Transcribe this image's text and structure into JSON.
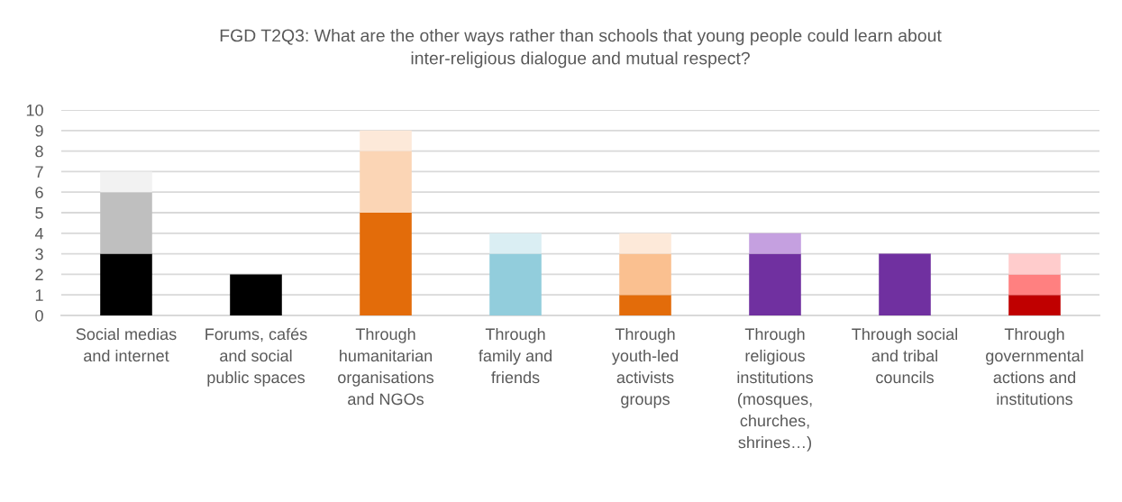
{
  "chart_data": {
    "type": "bar",
    "title": "FGD T2Q3: What are the other ways rather than schools that young people could learn about\ninter-religious dialogue and mutual respect?",
    "categories": [
      "Social medias\nand internet",
      "Forums, cafés\nand social\npublic spaces",
      "Through\nhumanitarian\norganisations\nand NGOs",
      "Through\nfamily and\nfriends",
      "Through\nyouth-led\nactivists\ngroups",
      "Through\nreligious\ninstitutions\n(mosques,\nchurches,\nshrines…)",
      "Through social\nand tribal\ncouncils",
      "Through\ngovernmental\nactions and\ninstitutions"
    ],
    "stacked": true,
    "series": [
      {
        "colors": [
          "#000000",
          "#000000",
          "#e36c0a",
          "#92cddc",
          "#e36c0a",
          "#7030a0",
          "#7030a0",
          "#c00000"
        ],
        "values": [
          3,
          2,
          5,
          3,
          1,
          3,
          3,
          1
        ]
      },
      {
        "colors": [
          "#bfbfbf",
          null,
          "#fbd5b5",
          "#daeef3",
          "#fac090",
          "#c5a0e0",
          null,
          "#ff8080"
        ],
        "values": [
          3,
          null,
          3,
          1,
          2,
          1,
          null,
          1
        ]
      },
      {
        "colors": [
          "#f2f2f2",
          null,
          "#fde9d9",
          null,
          "#fde9d9",
          null,
          null,
          "#ffcccc"
        ],
        "values": [
          1,
          null,
          1,
          null,
          1,
          null,
          null,
          1
        ]
      }
    ],
    "ylim": [
      0,
      10
    ],
    "yticks": [
      0,
      1,
      2,
      3,
      4,
      5,
      6,
      7,
      8,
      9,
      10
    ],
    "grid": "y"
  }
}
